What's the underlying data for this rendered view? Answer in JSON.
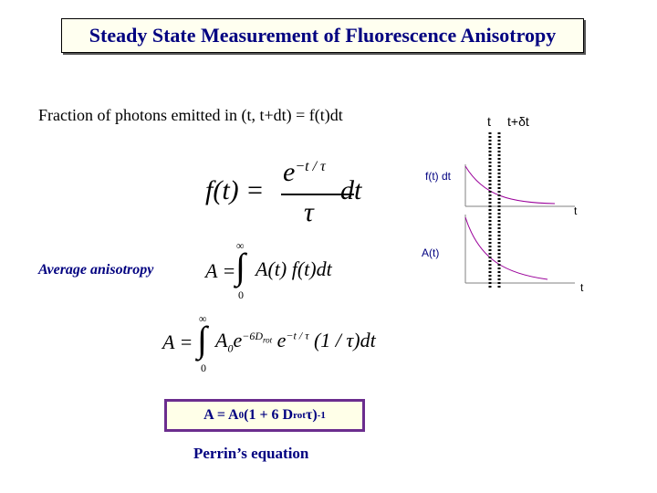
{
  "title": "Steady State Measurement of Fluorescence Anisotropy",
  "fraction_text": "Fraction of photons emitted in (t, t+dt) = f(t)dt",
  "avg_label": "Average anisotropy",
  "perrin": {
    "prefix": "A = A",
    "sub0": "0",
    "mid": " (1 + 6 D",
    "sub_rot": "rot",
    "tau": " τ)",
    "exp": "-1"
  },
  "perrin_label": "Perrin’s equation",
  "graph": {
    "t_label": "t",
    "t_dt_label": "t+δt",
    "ft_label": "f(t) dt",
    "t_axis1": "t",
    "at_label": "A(t)",
    "t_axis2": "t"
  },
  "eq1": {
    "lhs": "f(t) =",
    "num": "e",
    "num_exp": "−t / τ",
    "den": "τ",
    "rhs": "dt"
  },
  "eq2": {
    "lhs": "A =",
    "upper": "∞",
    "lower": "0",
    "body": "A(t) f(t)dt"
  },
  "eq3": {
    "lhs": "A =",
    "upper": "∞",
    "lower": "0",
    "body_a": "A",
    "sub0": "0",
    "body_e": "e",
    "exp": "−6D",
    "exp_sub": "rot",
    "exp2": " e",
    "exp3": "−t / τ",
    "body_tail": "(1 / τ)dt"
  }
}
